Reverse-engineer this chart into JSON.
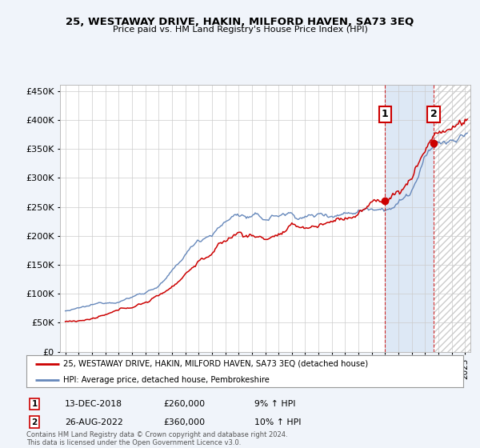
{
  "title": "25, WESTAWAY DRIVE, HAKIN, MILFORD HAVEN, SA73 3EQ",
  "subtitle": "Price paid vs. HM Land Registry's House Price Index (HPI)",
  "legend_line1": "25, WESTAWAY DRIVE, HAKIN, MILFORD HAVEN, SA73 3EQ (detached house)",
  "legend_line2": "HPI: Average price, detached house, Pembrokeshire",
  "annotation1_label": "1",
  "annotation1_date": "13-DEC-2018",
  "annotation1_price": "£260,000",
  "annotation1_pct": "9% ↑ HPI",
  "annotation2_label": "2",
  "annotation2_date": "26-AUG-2022",
  "annotation2_price": "£360,000",
  "annotation2_pct": "10% ↑ HPI",
  "footer": "Contains HM Land Registry data © Crown copyright and database right 2024.\nThis data is licensed under the Open Government Licence v3.0.",
  "ylim": [
    0,
    460000
  ],
  "yticks": [
    0,
    50000,
    100000,
    150000,
    200000,
    250000,
    300000,
    350000,
    400000,
    450000
  ],
  "bg_color": "#f0f4fa",
  "plot_bg_color": "#ffffff",
  "red_color": "#cc0000",
  "blue_color": "#6688bb",
  "shade_color": "#dde8f5",
  "hatch_color": "#cccccc",
  "sale1_x": 2019.0,
  "sale1_y": 260000,
  "sale2_x": 2022.65,
  "sale2_y": 360000,
  "xlim_left": 1994.6,
  "xlim_right": 2025.4
}
